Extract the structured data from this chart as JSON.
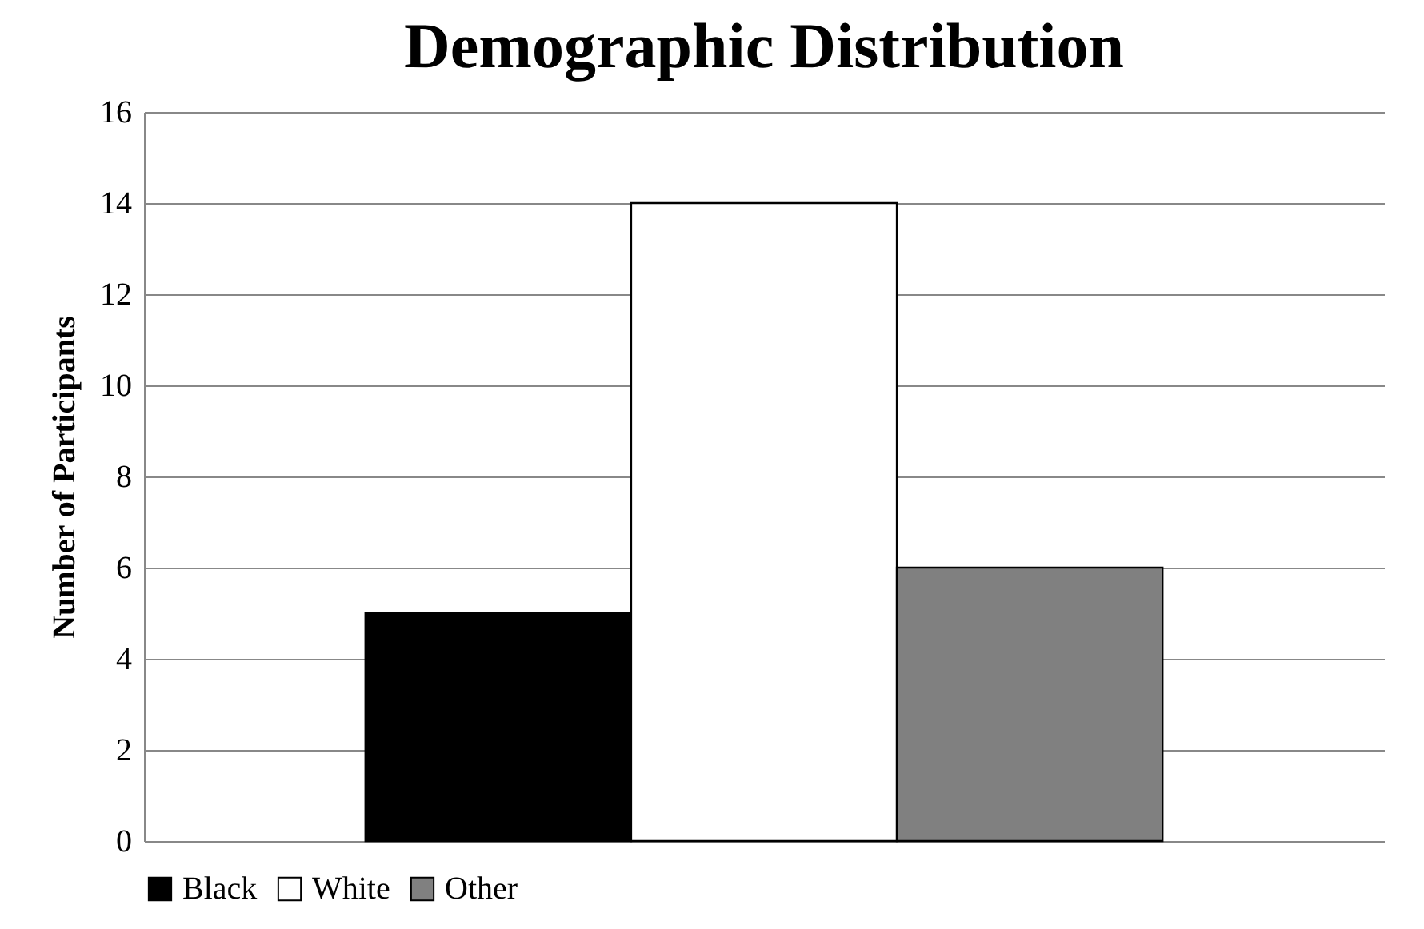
{
  "chart_data": {
    "type": "bar",
    "title": "Demographic Distribution",
    "ylabel": "Number of Participants",
    "categories": [
      null
    ],
    "series": [
      {
        "name": "Black",
        "color": "#000000",
        "values": [
          5
        ]
      },
      {
        "name": "White",
        "color": "#ffffff",
        "values": [
          14
        ]
      },
      {
        "name": "Other",
        "color": "#808080",
        "values": [
          6
        ]
      }
    ],
    "ylim": [
      0,
      16
    ],
    "yticks": [
      0,
      2,
      4,
      6,
      8,
      10,
      12,
      14,
      16
    ],
    "grid": "y",
    "legend": "bottom"
  }
}
